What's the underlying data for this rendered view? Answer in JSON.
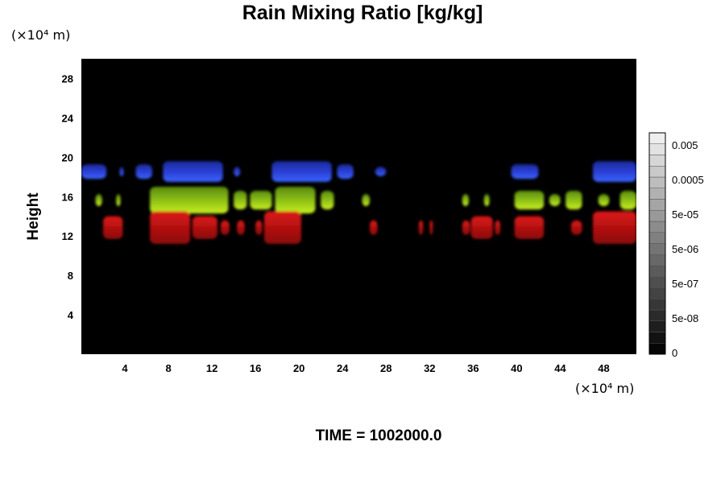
{
  "chart_data": {
    "type": "heatmap",
    "title": "Rain Mixing Ratio [kg/kg]",
    "xlabel": "",
    "ylabel": "Height",
    "x_unit": "(×10⁴ m)",
    "y_unit": "(×10⁴ m)",
    "x_ticks": [
      "4",
      "8",
      "12",
      "16",
      "20",
      "24",
      "28",
      "32",
      "36",
      "40",
      "44",
      "48"
    ],
    "y_ticks": [
      "4",
      "8",
      "12",
      "16",
      "20",
      "24",
      "28"
    ],
    "xlim": [
      0,
      51
    ],
    "ylim": [
      0,
      30
    ],
    "background_color": "#000000",
    "colorbar": {
      "labels": [
        "0.005",
        "0.0005",
        "5e-05",
        "5e-06",
        "5e-07",
        "5e-08",
        "0"
      ],
      "levels": 20,
      "colors": [
        "#000000",
        "#ffffff"
      ]
    },
    "regions": [
      {
        "color": "#2233cc",
        "layer": "upper",
        "y_range": [
          17.5,
          19.6
        ],
        "x_ranges": [
          [
            0,
            2.3
          ],
          [
            3.5,
            3.9
          ],
          [
            5,
            6.5
          ],
          [
            7.5,
            13
          ],
          [
            14,
            14.6
          ],
          [
            17.5,
            23
          ],
          [
            23.5,
            25
          ],
          [
            27,
            28
          ],
          [
            39.5,
            42
          ],
          [
            47,
            51
          ]
        ]
      },
      {
        "color": "#99cc11",
        "layer": "middle",
        "y_range": [
          14.3,
          17
        ],
        "x_ranges": [
          [
            1.3,
            1.9
          ],
          [
            3.2,
            3.6
          ],
          [
            6.3,
            13.5
          ],
          [
            14,
            15.2
          ],
          [
            15.5,
            17.5
          ],
          [
            17.8,
            21.5
          ],
          [
            22,
            23.2
          ],
          [
            25.8,
            26.5
          ],
          [
            35,
            35.6
          ],
          [
            37,
            37.5
          ],
          [
            39.8,
            42.5
          ],
          [
            43,
            44
          ],
          [
            44.5,
            46
          ],
          [
            47.5,
            48.5
          ],
          [
            49.5,
            51
          ]
        ]
      },
      {
        "color": "#bb1111",
        "layer": "lower",
        "y_range": [
          11.2,
          14.5
        ],
        "x_ranges": [
          [
            2,
            3.8
          ],
          [
            6.3,
            10
          ],
          [
            10.2,
            12.5
          ],
          [
            12.8,
            13.6
          ],
          [
            14.3,
            15
          ],
          [
            16,
            16.6
          ],
          [
            16.8,
            20.2
          ],
          [
            26.5,
            27.2
          ],
          [
            31,
            31.4
          ],
          [
            32,
            32.3
          ],
          [
            35,
            35.7
          ],
          [
            35.8,
            37.8
          ],
          [
            38,
            38.5
          ],
          [
            39.8,
            42.5
          ],
          [
            45,
            46
          ],
          [
            47,
            51
          ]
        ]
      }
    ]
  },
  "time_label": "TIME = 1002000.0"
}
